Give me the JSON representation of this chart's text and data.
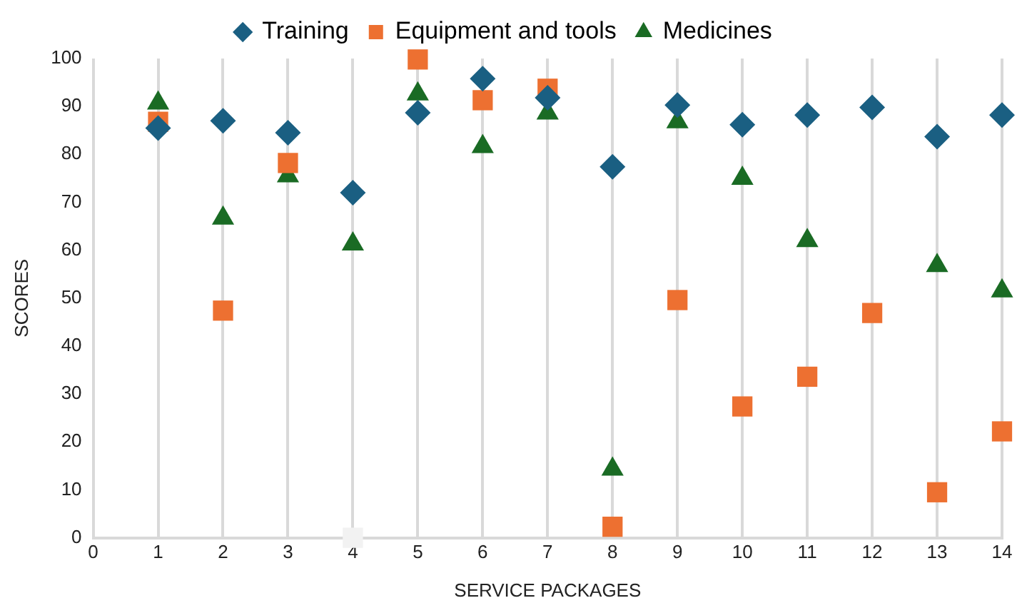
{
  "chart_data": {
    "type": "scatter",
    "xlabel": "SERVICE PACKAGES",
    "ylabel": "SCORES",
    "xlim": [
      0,
      14
    ],
    "xticks": [
      0,
      1,
      2,
      3,
      4,
      5,
      6,
      7,
      8,
      9,
      10,
      11,
      12,
      13,
      14
    ],
    "ylim": [
      0,
      100
    ],
    "yticks": [
      0,
      10,
      20,
      30,
      40,
      50,
      60,
      70,
      80,
      90,
      100
    ],
    "grid": "x",
    "legend": "top",
    "x": [
      1,
      2,
      3,
      4,
      5,
      6,
      7,
      8,
      9,
      10,
      11,
      12,
      13,
      14
    ],
    "series": [
      {
        "name": "Training",
        "color": "#1a5f82",
        "marker": "diamond",
        "values": [
          85.5,
          87,
          84.5,
          72,
          88.7,
          95.8,
          91.8,
          77.4,
          90.3,
          86.2,
          88.2,
          89.8,
          83.7,
          88.2
        ]
      },
      {
        "name": "Equipment and tools",
        "color": "#ed7031",
        "marker": "square",
        "colors": [
          "#ed7031",
          "#ed7031",
          "#ed7031",
          "#f2f2f2",
          "#ed7031",
          "#ed7031",
          "#ed7031",
          "#ed7031",
          "#ed7031",
          "#ed7031",
          "#ed7031",
          "#ed7031",
          "#ed7031",
          "#ed7031"
        ],
        "values": [
          86.8,
          47.4,
          78.2,
          0,
          99.8,
          91.3,
          93.7,
          2.3,
          49.6,
          27.4,
          33.6,
          46.9,
          9.5,
          22.2
        ]
      },
      {
        "name": "Medicines",
        "color": "#1a6b24",
        "marker": "triangle",
        "values": [
          90.7,
          66.7,
          75.5,
          61.3,
          92.6,
          81.6,
          88.6,
          14.3,
          86.8,
          75,
          62,
          null,
          56.8,
          51.5
        ]
      }
    ]
  }
}
